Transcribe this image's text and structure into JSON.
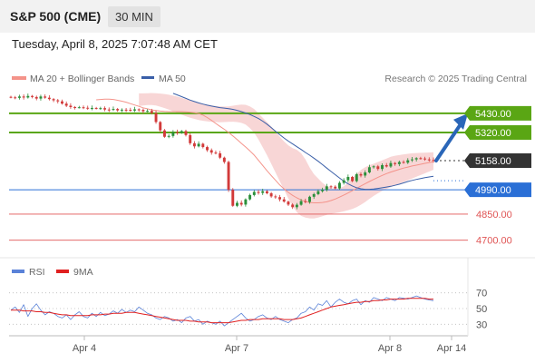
{
  "header": {
    "title": "S&P 500 (CME)",
    "timeframe": "30 MIN"
  },
  "datetime": "Tuesday, April 8, 2025 7:07:48 AM CET",
  "colors": {
    "ma20": "#f4938a",
    "band": "#f6c8c8",
    "ma50": "#3a5fa8",
    "resistance": "#5aa614",
    "pivot": "#2a6fd6",
    "support": "#e05555",
    "up": "#2a8f3a",
    "down": "#d23a3a",
    "rsi": "#5a82d8",
    "rsi_ma": "#e02020",
    "arrow": "#2a66b8",
    "price_box": "#333333"
  },
  "legend": {
    "ma20_label": "MA 20 + Bollinger Bands",
    "ma50_label": "MA 50",
    "copyright": "Research © 2025 Trading Central"
  },
  "rsi_legend": {
    "rsi_label": "RSI",
    "ma_label": "9MA"
  },
  "chart_data": [
    {
      "type": "line",
      "ylim": [
        4620,
        5560
      ],
      "x_ticks": [
        "Apr 4",
        "Apr 7",
        "Apr 8",
        "Apr 14"
      ],
      "levels": [
        {
          "value": 5430,
          "label": "5430.00",
          "kind": "resistance"
        },
        {
          "value": 5320,
          "label": "5320.00",
          "kind": "resistance"
        },
        {
          "value": 5158,
          "label": "5158.00",
          "kind": "last"
        },
        {
          "value": 4990,
          "label": "4990.00",
          "kind": "pivot"
        },
        {
          "value": 4850,
          "label": "4850.00",
          "kind": "support"
        },
        {
          "value": 4700,
          "label": "4700.00",
          "kind": "support"
        }
      ],
      "close": [
        5522,
        5519,
        5527,
        5521,
        5530,
        5524,
        5515,
        5527,
        5520,
        5512,
        5505,
        5499,
        5486,
        5474,
        5466,
        5464,
        5465,
        5462,
        5460,
        5461,
        5458,
        5460,
        5452,
        5450,
        5455,
        5447,
        5451,
        5450,
        5446,
        5453,
        5450,
        5442,
        5444,
        5432,
        5380,
        5332,
        5295,
        5300,
        5322,
        5318,
        5328,
        5305,
        5258,
        5240,
        5255,
        5236,
        5218,
        5204,
        5200,
        5175,
        5150,
        4990,
        4898,
        4915,
        4905,
        4935,
        4960,
        4978,
        4972,
        4982,
        4970,
        4952,
        4948,
        4935,
        4922,
        4905,
        4890,
        4904,
        4925,
        4920,
        4950,
        4965,
        4982,
        4990,
        5010,
        5008,
        4998,
        5030,
        5045,
        5064,
        5040,
        5080,
        5072,
        5090,
        5120,
        5125,
        5110,
        5132,
        5124,
        5144,
        5138,
        5150,
        5146,
        5160,
        5165,
        5172,
        5170,
        5165,
        5162,
        5158
      ],
      "ma20": [
        5508,
        5510,
        5512,
        5512,
        5510,
        5505,
        5500,
        5494,
        5486,
        5478,
        5470,
        5462,
        5456,
        5450,
        5446,
        5443,
        5441,
        5440,
        5440,
        5440,
        5440,
        5439,
        5437,
        5434,
        5429,
        5420,
        5406,
        5390,
        5372,
        5355,
        5338,
        5320,
        5300,
        5279,
        5257,
        5236,
        5214,
        5190,
        5160,
        5130,
        5100,
        5072,
        5045,
        5018,
        4995,
        4975,
        4958,
        4944,
        4932,
        4923,
        4917,
        4915,
        4915,
        4917,
        4921,
        4928,
        4937,
        4948,
        4960,
        4972,
        4985,
        4998,
        5012,
        5025,
        5038,
        5050,
        5062,
        5073,
        5083,
        5092,
        5100,
        5108,
        5115,
        5121,
        5127,
        5132,
        5137,
        5142,
        5147,
        5152
      ],
      "band_upper": [
        5545,
        5545,
        5546,
        5547,
        5546,
        5544,
        5541,
        5537,
        5532,
        5526,
        5519,
        5512,
        5505,
        5498,
        5491,
        5485,
        5480,
        5476,
        5473,
        5470,
        5469,
        5470,
        5474,
        5478,
        5480,
        5479,
        5470,
        5455,
        5430,
        5405,
        5380,
        5354,
        5326,
        5296,
        5268,
        5245,
        5230,
        5220,
        5200,
        5165,
        5118,
        5080,
        5055,
        5030,
        5012,
        5000,
        4996,
        4999,
        5010,
        5032,
        5058,
        5082,
        5104,
        5120,
        5132,
        5140,
        5150,
        5160,
        5170,
        5180,
        5186,
        5190,
        5194,
        5197,
        5200,
        5202,
        5203,
        5204,
        5205,
        5206
      ],
      "band_lower": [
        5471,
        5475,
        5478,
        5478,
        5475,
        5468,
        5460,
        5452,
        5442,
        5432,
        5422,
        5413,
        5405,
        5398,
        5392,
        5387,
        5384,
        5381,
        5380,
        5379,
        5380,
        5381,
        5382,
        5380,
        5375,
        5365,
        5345,
        5318,
        5280,
        5235,
        5190,
        5140,
        5090,
        5040,
        4990,
        4940,
        4895,
        4862,
        4840,
        4830,
        4826,
        4825,
        4830,
        4838,
        4846,
        4852,
        4856,
        4860,
        4866,
        4873,
        4880,
        4890,
        4904,
        4920,
        4938,
        4955,
        4970,
        4984,
        4995,
        5005,
        5015,
        5025,
        5035,
        5045,
        5055,
        5065,
        5075,
        5085,
        5095,
        5105
      ],
      "ma50": [
        5545,
        5536,
        5526,
        5516,
        5506,
        5498,
        5490,
        5483,
        5477,
        5472,
        5467,
        5463,
        5460,
        5457,
        5453,
        5447,
        5440,
        5432,
        5423,
        5412,
        5400,
        5385,
        5368,
        5348,
        5327,
        5307,
        5288,
        5270,
        5254,
        5238,
        5222,
        5205,
        5189,
        5172,
        5154,
        5135,
        5115,
        5096,
        5077,
        5058,
        5040,
        5024,
        5012,
        5002,
        4996,
        4993,
        4993,
        4995,
        4998,
        5002,
        5006,
        5010,
        5016,
        5022,
        5030,
        5038,
        5044,
        5050,
        5055,
        5060,
        5064,
        5068
      ],
      "arrow_target": 5430
    },
    {
      "type": "line",
      "ylim": [
        20,
        80
      ],
      "y_ticks": [
        70,
        50,
        30
      ],
      "series": [
        {
          "name": "RSI",
          "values": [
            48,
            52,
            45,
            55,
            40,
            50,
            56,
            48,
            42,
            46,
            44,
            40,
            38,
            42,
            36,
            42,
            46,
            40,
            38,
            44,
            40,
            45,
            41,
            43,
            47,
            44,
            49,
            45,
            48,
            46,
            52,
            48,
            44,
            42,
            38,
            36,
            40,
            38,
            34,
            36,
            32,
            38,
            40,
            34,
            36,
            30,
            34,
            32,
            30,
            34,
            28,
            32,
            36,
            40,
            44,
            38,
            34,
            36,
            40,
            42,
            38,
            36,
            40,
            36,
            34,
            32,
            36,
            38,
            44,
            46,
            52,
            48,
            56,
            54,
            60,
            52,
            58,
            62,
            58,
            56,
            60,
            62,
            55,
            60,
            58,
            64,
            62,
            60,
            64,
            62,
            60,
            64,
            63,
            62,
            64,
            66,
            64,
            62,
            61,
            60
          ]
        },
        {
          "name": "9MA",
          "values": [
            48,
            48,
            48,
            47,
            47,
            47,
            46,
            46,
            45,
            45,
            44,
            43,
            42,
            42,
            41,
            41,
            41,
            41,
            41,
            42,
            42,
            42,
            43,
            43,
            44,
            44,
            44,
            45,
            45,
            45,
            44,
            43,
            42,
            41,
            40,
            39,
            38,
            37,
            36,
            35,
            35,
            35,
            34,
            34,
            33,
            33,
            33,
            32,
            32,
            32,
            32,
            32,
            33,
            34,
            35,
            35,
            36,
            36,
            36,
            37,
            37,
            37,
            37,
            37,
            36,
            36,
            36,
            37,
            38,
            40,
            42,
            44,
            46,
            48,
            50,
            52,
            53,
            54,
            55,
            56,
            57,
            58,
            58,
            59,
            59,
            60,
            60,
            61,
            61,
            62,
            62,
            62,
            62,
            63,
            63,
            63,
            63,
            63,
            62,
            62
          ]
        }
      ]
    }
  ]
}
